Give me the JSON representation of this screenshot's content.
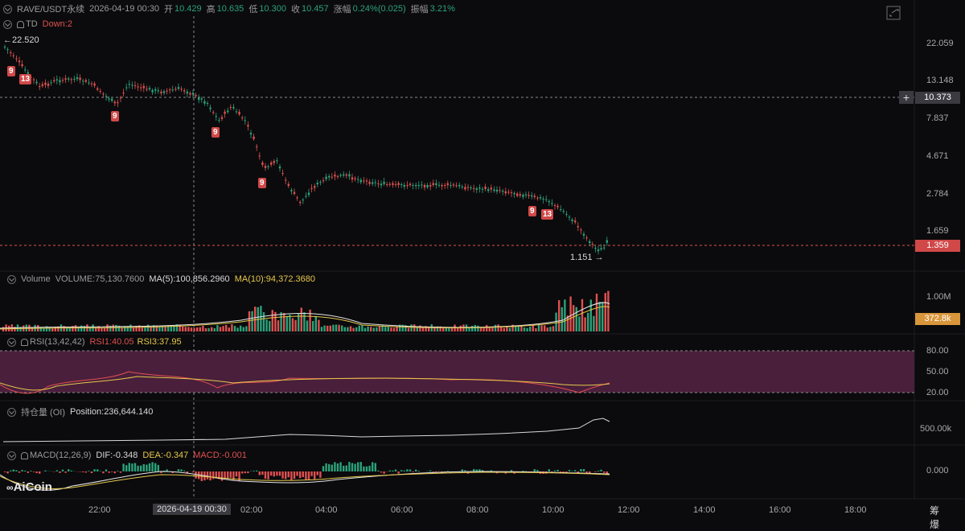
{
  "header": {
    "symbol": "RAVE/USDT永续",
    "datetime": "2026-04-19 00:30",
    "open_label": "开",
    "open": "10.429",
    "high_label": "高",
    "high": "10.635",
    "low_label": "低",
    "low": "10.300",
    "close_label": "收",
    "close": "10.457",
    "change_label": "涨幅",
    "change": "0.24%(0.025)",
    "amplitude_label": "振幅",
    "amplitude": "3.21%"
  },
  "td_indicator": {
    "label": "TD",
    "status": "Down:2"
  },
  "price_axis": {
    "ticks": [
      "22.059",
      "13.148",
      "7.837",
      "4.671",
      "2.784",
      "1.659"
    ],
    "crosshair_value": "10.373",
    "last_price": "1.359",
    "max_marker": "22.520",
    "min_marker": "1.151"
  },
  "td_markers": [
    "9",
    "13",
    "9",
    "9",
    "9",
    "9",
    "13"
  ],
  "volume_panel": {
    "label": "Volume",
    "volume": "VOLUME:75,130.7600",
    "ma5": "MA(5):100,856.2960",
    "ma10": "MA(10):94,372.3680",
    "axis_top": "1.00M",
    "current": "372.8k"
  },
  "rsi_panel": {
    "label": "RSI(13,42,42)",
    "rsi1": "RSI1:40.05",
    "rsi3": "RSI3:37.95",
    "ticks": [
      "80.00",
      "50.00",
      "20.00"
    ]
  },
  "oi_panel": {
    "label": "持仓量 (OI)",
    "position": "Position:236,644.140",
    "tick": "500.00k"
  },
  "macd_panel": {
    "label": "MACD(12,26,9)",
    "dif": "DIF:-0.348",
    "dea": "DEA:-0.347",
    "macd": "MACD:-0.001",
    "tick": "0.000"
  },
  "time_axis": {
    "labels": [
      "22:00",
      "02:00",
      "04:00",
      "06:00",
      "08:00",
      "10:00",
      "12:00",
      "14:00",
      "16:00",
      "18:00"
    ],
    "crosshair_time": "2026-04-19 00:30",
    "right_label": "筹 爆"
  },
  "brand": {
    "name": "AiCoin"
  },
  "colors": {
    "up": "#2ba27a",
    "down": "#e05050",
    "ma5": "#e6e6e6",
    "ma10": "#e6c84a",
    "rsi_band": "#4a1f3c"
  }
}
